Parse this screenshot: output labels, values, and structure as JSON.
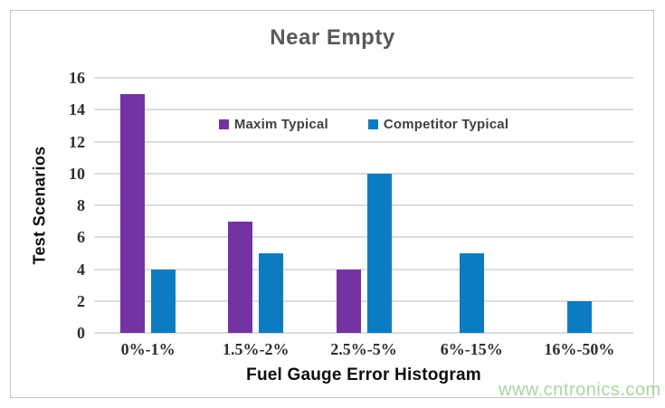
{
  "window": {
    "watermark": "www.cntronics.com"
  },
  "colors": {
    "title": "#595959",
    "gridline": "#dcdcdc",
    "frame_border": "#c6c6c6",
    "tick_label": "#2e2e2e",
    "watermark": "#a7d7a0",
    "maxim_purple": "#7333A2",
    "competitor_blue": "#0C7CC2"
  },
  "chart_data": {
    "type": "bar",
    "title": "Near Empty",
    "xlabel": "Fuel Gauge Error Histogram",
    "ylabel": "Test Scenarios",
    "categories": [
      "0%-1%",
      "1.5%-2%",
      "2.5%-5%",
      "6%-15%",
      "16%-50%"
    ],
    "series": [
      {
        "name": "Maxim Typical",
        "color": "#7333A2",
        "values": [
          15,
          7,
          4,
          0,
          0
        ]
      },
      {
        "name": "Competitor Typical",
        "color": "#0C7CC2",
        "values": [
          4,
          5,
          10,
          5,
          2
        ]
      }
    ],
    "ylim": [
      0,
      16
    ],
    "ytick_step": 2,
    "grid": "horizontal",
    "legend_position": "top-center-inside"
  }
}
